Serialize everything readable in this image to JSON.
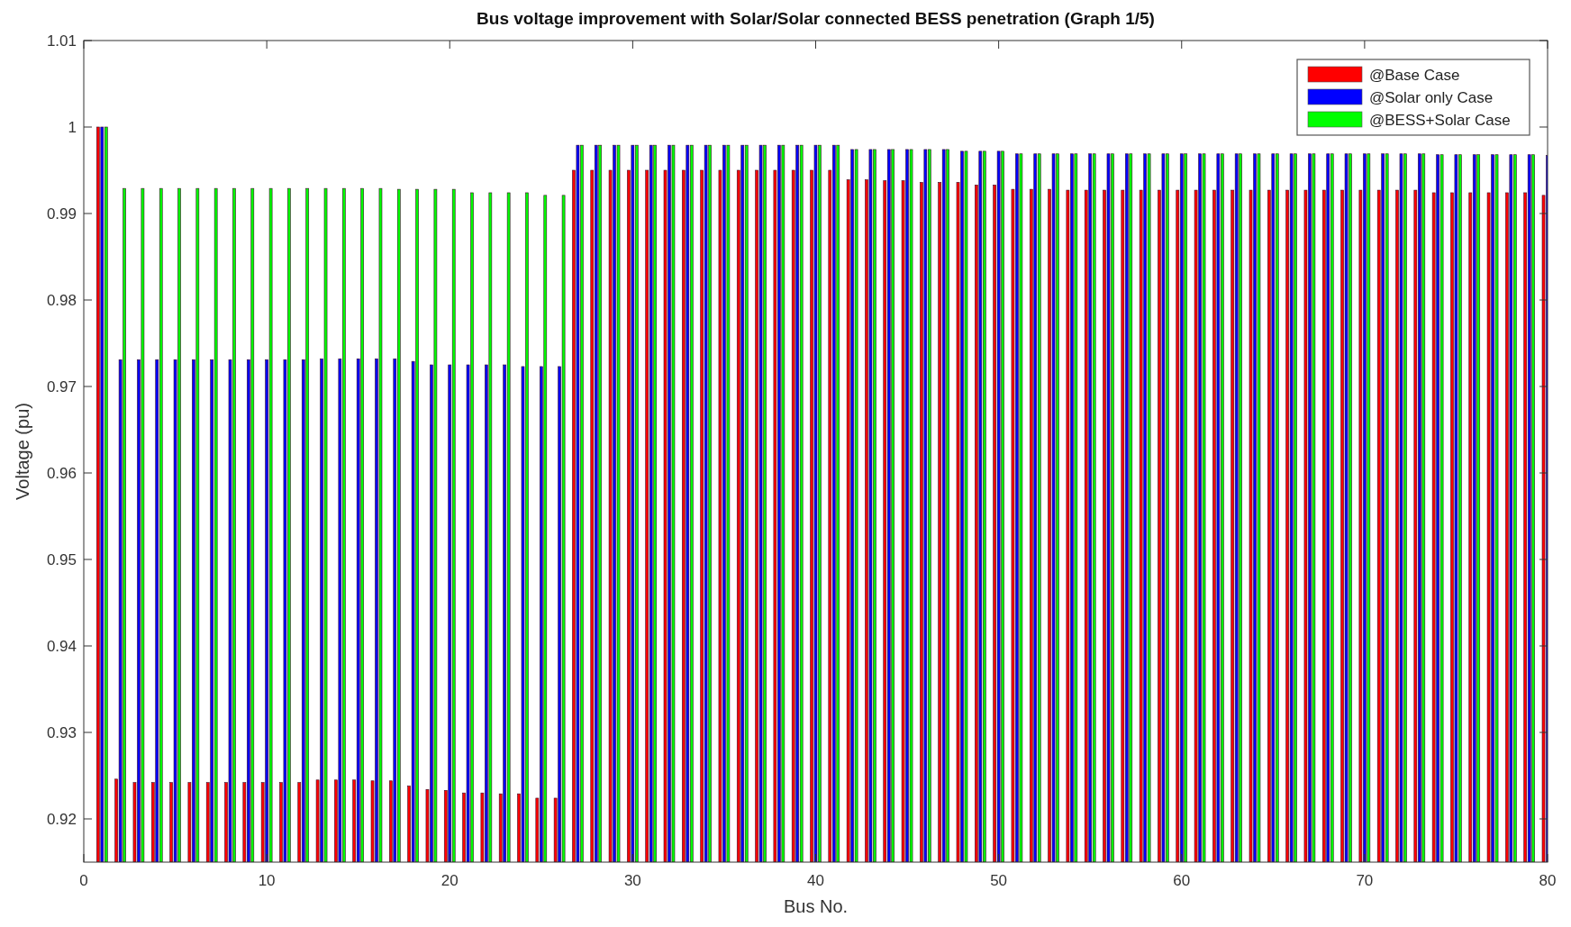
{
  "chart_data": {
    "type": "bar",
    "title": "Bus voltage improvement with Solar/Solar connected BESS penetration (Graph 1/5)",
    "xlabel": "Bus No.",
    "ylabel": "Voltage (pu)",
    "x": [
      1,
      2,
      3,
      4,
      5,
      6,
      7,
      8,
      9,
      10,
      11,
      12,
      13,
      14,
      15,
      16,
      17,
      18,
      19,
      20,
      21,
      22,
      23,
      24,
      25,
      26,
      27,
      28,
      29,
      30,
      31,
      32,
      33,
      34,
      35,
      36,
      37,
      38,
      39,
      40,
      41,
      42,
      43,
      44,
      45,
      46,
      47,
      48,
      49,
      50,
      51,
      52,
      53,
      54,
      55,
      56,
      57,
      58,
      59,
      60,
      61,
      62,
      63,
      64,
      65,
      66,
      67,
      68,
      69,
      70,
      71,
      72,
      73,
      74,
      75,
      76,
      77,
      78,
      79,
      80
    ],
    "series": [
      {
        "name": "@Base Case",
        "color": "#ff0000",
        "values": [
          1.0,
          0.9246,
          0.9242,
          0.9242,
          0.9242,
          0.9242,
          0.9242,
          0.9242,
          0.9242,
          0.9242,
          0.9242,
          0.9242,
          0.9245,
          0.9245,
          0.9245,
          0.9244,
          0.9244,
          0.9238,
          0.9234,
          0.9233,
          0.923,
          0.923,
          0.9229,
          0.9229,
          0.9224,
          0.9224,
          0.995,
          0.995,
          0.995,
          0.995,
          0.995,
          0.995,
          0.995,
          0.995,
          0.995,
          0.995,
          0.995,
          0.995,
          0.995,
          0.995,
          0.995,
          0.9939,
          0.9939,
          0.9938,
          0.9938,
          0.9936,
          0.9936,
          0.9936,
          0.9933,
          0.9933,
          0.9928,
          0.9928,
          0.9928,
          0.9927,
          0.9927,
          0.9927,
          0.9927,
          0.9927,
          0.9927,
          0.9927,
          0.9927,
          0.9927,
          0.9927,
          0.9927,
          0.9927,
          0.9927,
          0.9927,
          0.9927,
          0.9927,
          0.9927,
          0.9927,
          0.9927,
          0.9927,
          0.9924,
          0.9924,
          0.9924,
          0.9924,
          0.9924,
          0.9924,
          0.9921
        ]
      },
      {
        "name": "@Solar only Case",
        "color": "#0000ff",
        "values": [
          1.0,
          0.9731,
          0.9731,
          0.9731,
          0.9731,
          0.9731,
          0.9731,
          0.9731,
          0.9731,
          0.9731,
          0.9731,
          0.9731,
          0.9732,
          0.9732,
          0.9732,
          0.9732,
          0.9732,
          0.9729,
          0.9725,
          0.9725,
          0.9725,
          0.9725,
          0.9725,
          0.9723,
          0.9723,
          0.9723,
          0.9979,
          0.9979,
          0.9979,
          0.9979,
          0.9979,
          0.9979,
          0.9979,
          0.9979,
          0.9979,
          0.9979,
          0.9979,
          0.9979,
          0.9979,
          0.9979,
          0.9979,
          0.9974,
          0.9974,
          0.9974,
          0.9974,
          0.9974,
          0.9974,
          0.9972,
          0.9972,
          0.9972,
          0.9969,
          0.9969,
          0.9969,
          0.9969,
          0.9969,
          0.9969,
          0.9969,
          0.9969,
          0.9969,
          0.9969,
          0.9969,
          0.9969,
          0.9969,
          0.9969,
          0.9969,
          0.9969,
          0.9969,
          0.9969,
          0.9969,
          0.9969,
          0.9969,
          0.9969,
          0.9969,
          0.9968,
          0.9968,
          0.9968,
          0.9968,
          0.9968,
          0.9968,
          0.9967
        ]
      },
      {
        "name": "@BESS+Solar Case",
        "color": "#00ff00",
        "values": [
          1.0,
          0.9929,
          0.9929,
          0.9929,
          0.9929,
          0.9929,
          0.9929,
          0.9929,
          0.9929,
          0.9929,
          0.9929,
          0.9929,
          0.9929,
          0.9929,
          0.9929,
          0.9929,
          0.9928,
          0.9928,
          0.9928,
          0.9928,
          0.9924,
          0.9924,
          0.9924,
          0.9924,
          0.9921,
          0.9921,
          0.9979,
          0.9979,
          0.9979,
          0.9979,
          0.9979,
          0.9979,
          0.9979,
          0.9979,
          0.9979,
          0.9979,
          0.9979,
          0.9979,
          0.9979,
          0.9979,
          0.9979,
          0.9974,
          0.9974,
          0.9974,
          0.9974,
          0.9974,
          0.9974,
          0.9972,
          0.9972,
          0.9972,
          0.9969,
          0.9969,
          0.9969,
          0.9969,
          0.9969,
          0.9969,
          0.9969,
          0.9969,
          0.9969,
          0.9969,
          0.9969,
          0.9969,
          0.9969,
          0.9969,
          0.9969,
          0.9969,
          0.9969,
          0.9969,
          0.9969,
          0.9969,
          0.9969,
          0.9969,
          0.9969,
          0.9968,
          0.9968,
          0.9968,
          0.9968,
          0.9968,
          0.9968,
          null
        ]
      }
    ],
    "xlim": [
      0,
      80
    ],
    "xticks": [
      0,
      10,
      20,
      30,
      40,
      50,
      60,
      70,
      80
    ],
    "ylim": [
      0.915,
      1.01
    ],
    "yticks": [
      0.92,
      0.93,
      0.94,
      0.95,
      0.96,
      0.97,
      0.98,
      0.99,
      1,
      1.01
    ],
    "grid": false,
    "legend": "top right"
  }
}
